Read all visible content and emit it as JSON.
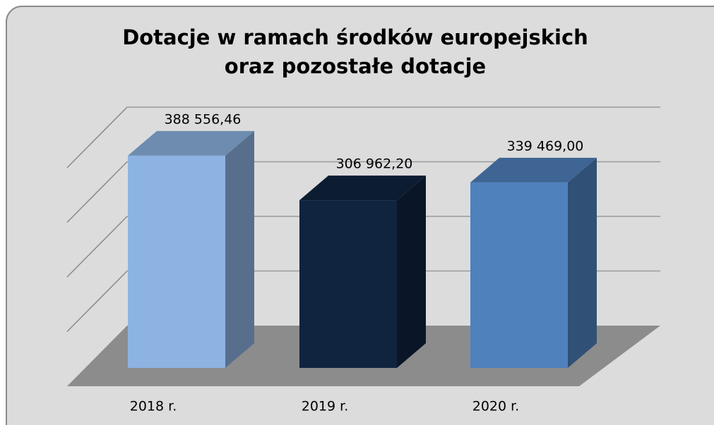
{
  "chart_data": {
    "type": "bar3d",
    "title": "Dotacje w ramach środków europejskich",
    "subtitle": "oraz pozostałe dotacje",
    "categories": [
      "2018 r.",
      "2019 r.",
      "2020 r."
    ],
    "values": [
      388556.46,
      306962.2,
      339469.0
    ],
    "value_labels": [
      "388 556,46",
      "306 962,20",
      "339 469,00"
    ],
    "colors": [
      "#8db3e2",
      "#10243f",
      "#4f81bd"
    ],
    "ylim": [
      0,
      400000
    ],
    "yticks": [
      0,
      100000,
      200000,
      300000,
      400000
    ],
    "grid": true
  }
}
